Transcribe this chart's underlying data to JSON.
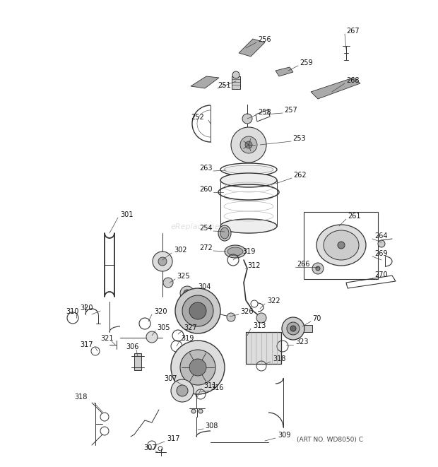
{
  "art_no": "(ART NO. WD8050) C",
  "bg_color": "#ffffff",
  "fig_width": 6.2,
  "fig_height": 6.61,
  "dpi": 100,
  "watermark": "eReplacementParts.com"
}
